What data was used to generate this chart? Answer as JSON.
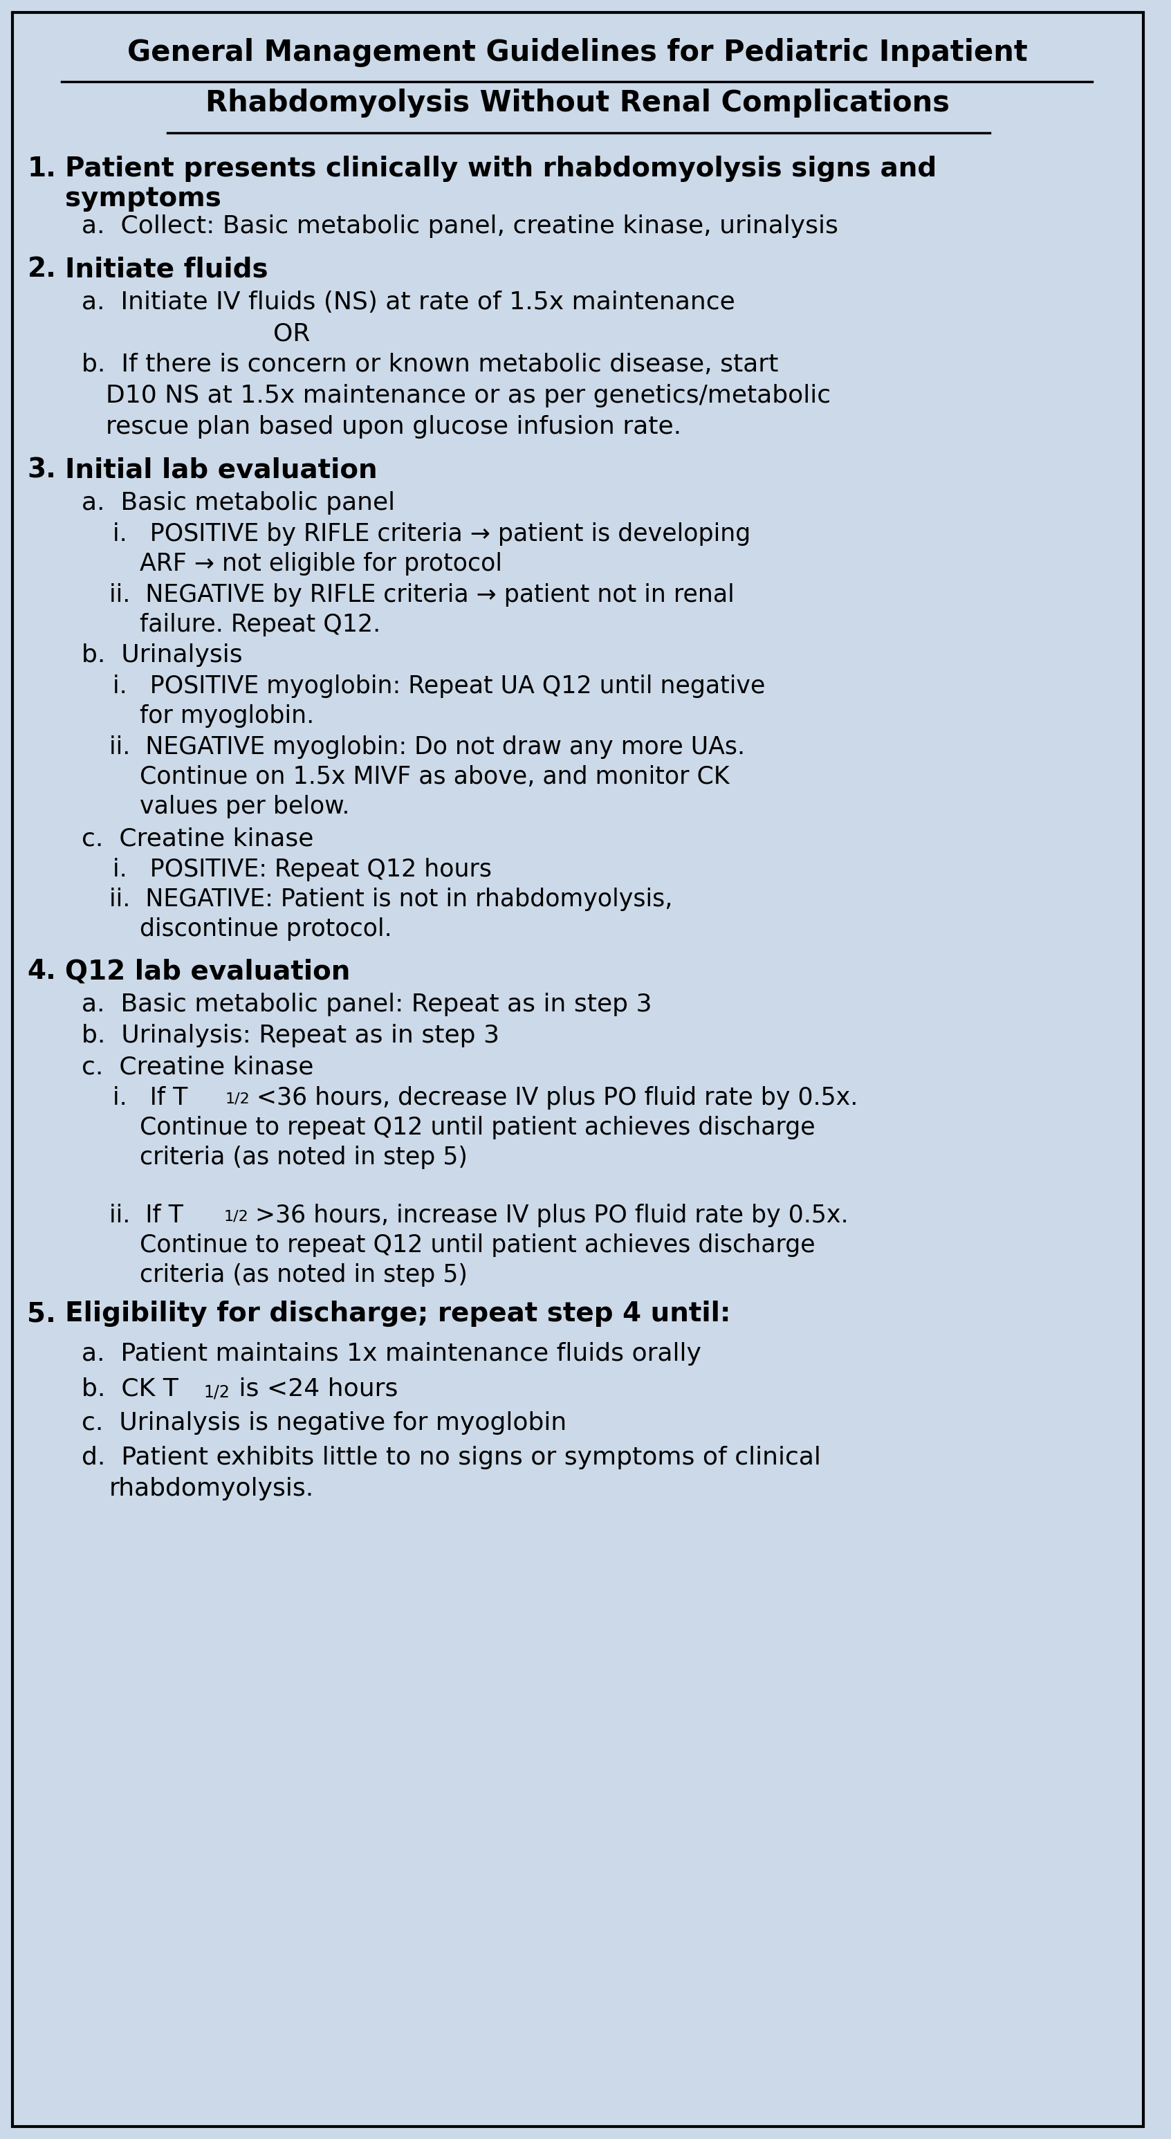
{
  "bg_color": "#ccd9e8",
  "border_color": "#000000",
  "text_color": "#000000",
  "title_line1": "General Management Guidelines for Pediatric Inpatient",
  "title_line2": "Rhabdomyolysis Without Renal Complications",
  "content": [
    {
      "type": "section",
      "num": "1.",
      "text": "Patient presents clinically with rhabdomyolysis signs and\nsymptoms",
      "bold": true
    },
    {
      "type": "a",
      "letter": "a.",
      "text": "Collect: Basic metabolic panel, creatine kinase, urinalysis",
      "bold": false
    },
    {
      "type": "section",
      "num": "2.",
      "text": "Initiate fluids",
      "bold": true
    },
    {
      "type": "a",
      "letter": "a.",
      "text": "Initiate IV fluids (NS) at rate of 1.5x maintenance",
      "bold": false
    },
    {
      "type": "or",
      "text": "OR"
    },
    {
      "type": "b",
      "letter": "b.",
      "text": "If there is concern or known metabolic disease, start\n    D10 NS at 1.5x maintenance or as per genetics/metabolic\n    rescue plan based upon glucose infusion rate.",
      "bold": false
    },
    {
      "type": "section",
      "num": "3.",
      "text": "Initial lab evaluation",
      "bold": true
    },
    {
      "type": "a",
      "letter": "a.",
      "text": "Basic metabolic panel",
      "bold": false
    },
    {
      "type": "i",
      "letter": "i.",
      "text": "POSITIVE by RIFLE criteria → patient is developing\n        ARF → not eligible for protocol",
      "bold": false,
      "bold_part": "POSITIVE"
    },
    {
      "type": "ii",
      "letter": "ii.",
      "text": "NEGATIVE by RIFLE criteria → patient not in renal\n        failure. Repeat Q12.",
      "bold": false,
      "bold_part": "NEGATIVE"
    },
    {
      "type": "a",
      "letter": "b.",
      "text": "Urinalysis",
      "bold": false
    },
    {
      "type": "i",
      "letter": "i.",
      "text": "POSITIVE myoglobin: Repeat UA Q12 until negative\n        for myoglobin.",
      "bold": false,
      "bold_part": "POSITIVE"
    },
    {
      "type": "ii",
      "letter": "ii.",
      "text": "NEGATIVE myoglobin: Do not draw any more UAs.\n        Continue on 1.5x MIVF as above, and monitor CK\n        values per below.",
      "bold": false,
      "bold_part": "NEGATIVE"
    },
    {
      "type": "a",
      "letter": "c.",
      "text": "Creatine kinase",
      "bold": false
    },
    {
      "type": "i",
      "letter": "i.",
      "text": "POSITIVE: Repeat Q12 hours",
      "bold": false,
      "bold_part": "POSITIVE:"
    },
    {
      "type": "ii",
      "letter": "ii.",
      "text": "NEGATIVE: Patient is not in rhabdomyolysis,\n        discontinue protocol.",
      "bold": false,
      "bold_part": "NEGATIVE:"
    },
    {
      "type": "section",
      "num": "4.",
      "text": "Q12 lab evaluation",
      "bold": true
    },
    {
      "type": "a",
      "letter": "a.",
      "text": "Basic metabolic panel: Repeat as in step 3",
      "bold": false
    },
    {
      "type": "a",
      "letter": "b.",
      "text": "Urinalysis: Repeat as in step 3",
      "bold": false
    },
    {
      "type": "a",
      "letter": "c.",
      "text": "Creatine kinase",
      "bold": false
    },
    {
      "type": "i",
      "letter": "i.",
      "text": "If T₁₂ <36 hours, decrease IV plus PO fluid rate by 0.5x.\n        Continue to repeat Q12 until patient achieves discharge\n        criteria (as noted in step 5)",
      "bold": false
    },
    {
      "type": "ii",
      "letter": "ii.",
      "text": "If T₁₂ >36 hours, increase IV plus PO fluid rate by 0.5x.\n        Continue to repeat Q12 until patient achieves discharge\n        criteria (as noted in step 5)",
      "bold": false
    },
    {
      "type": "section",
      "num": "5.",
      "text": "Eligibility for discharge; repeat step 4 until:",
      "bold": true
    },
    {
      "type": "a",
      "letter": "a.",
      "text": "Patient maintains 1x maintenance fluids orally",
      "bold": false
    },
    {
      "type": "a",
      "letter": "b.",
      "text": "CK T₁₂ is <24 hours",
      "bold": false
    },
    {
      "type": "a",
      "letter": "c.",
      "text": "Urinalysis is negative for myoglobin",
      "bold": false
    },
    {
      "type": "a",
      "letter": "d.",
      "text": "Patient exhibits little to no signs or symptoms of clinical\n    rhabdomyolysis.",
      "bold": false
    }
  ]
}
